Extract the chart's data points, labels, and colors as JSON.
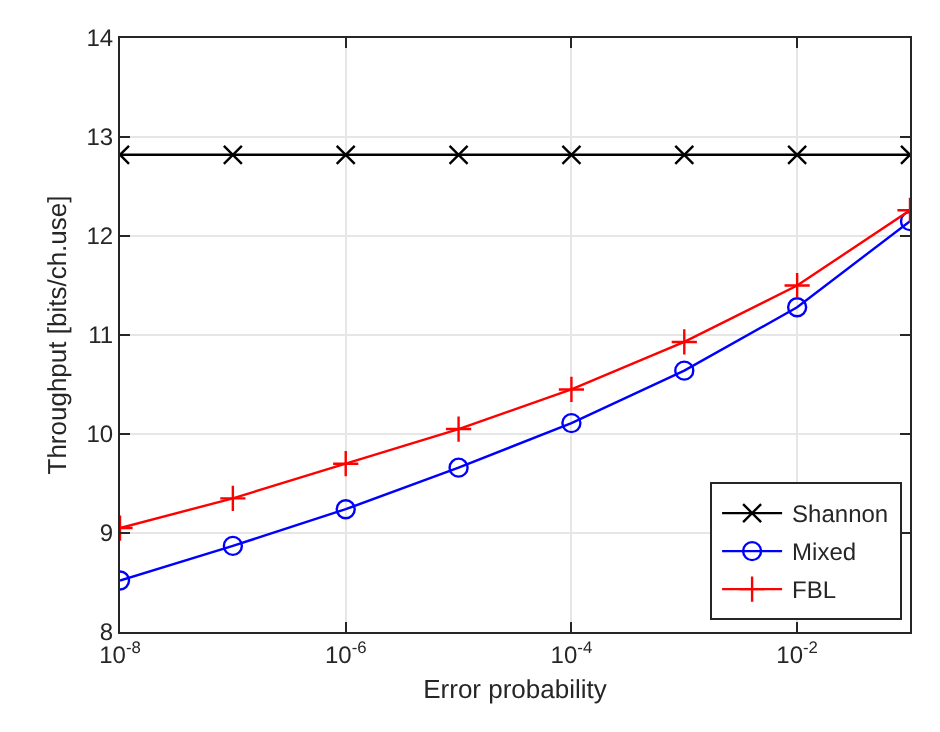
{
  "chart_data": {
    "type": "line",
    "xlabel": "Error probability",
    "ylabel": "Throughput [bits/ch.use]",
    "x": [
      1e-08,
      1e-07,
      1e-06,
      1e-05,
      0.0001,
      0.001,
      0.01,
      0.1
    ],
    "series": [
      {
        "name": "Shannon",
        "color": "#000000",
        "marker": "x",
        "values": [
          12.82,
          12.82,
          12.82,
          12.82,
          12.82,
          12.82,
          12.82,
          12.82
        ]
      },
      {
        "name": "Mixed",
        "color": "#0000ff",
        "marker": "circle",
        "values": [
          8.52,
          8.87,
          9.24,
          9.66,
          10.11,
          10.64,
          11.28,
          12.15
        ]
      },
      {
        "name": "FBL",
        "color": "#ff0000",
        "marker": "cross",
        "values": [
          9.05,
          9.35,
          9.7,
          10.05,
          10.45,
          10.93,
          11.5,
          12.26
        ]
      }
    ],
    "log": "x",
    "xlim": [
      1e-08,
      0.1
    ],
    "xticks": [
      {
        "value": 1e-08,
        "label": "10$^{-8}$"
      },
      {
        "value": 1e-06,
        "label": "10$^{-6}$"
      },
      {
        "value": 0.0001,
        "label": "10$^{-4}$"
      },
      {
        "value": 0.01,
        "label": "10$^{-2}$"
      }
    ],
    "ylim": [
      8,
      14
    ],
    "yticks": [
      8,
      9,
      10,
      11,
      12,
      13,
      14
    ],
    "grid": true,
    "legend": "bottom right",
    "line_style": "solid"
  }
}
